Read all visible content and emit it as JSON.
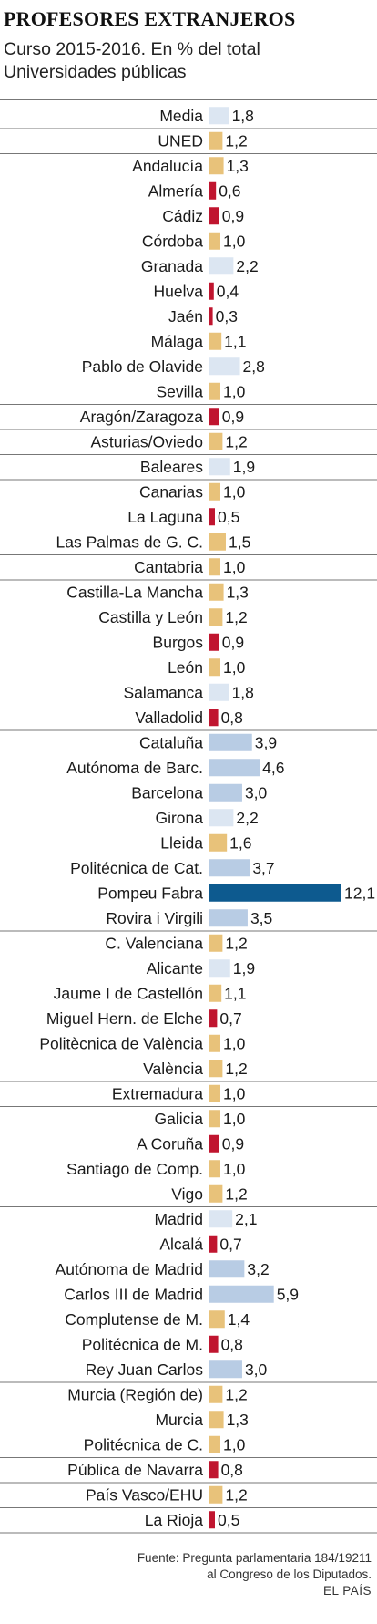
{
  "title": "PROFESORES EXTRANJEROS",
  "subtitle_line1": "Curso 2015-2016. En % del total",
  "subtitle_line2": "Universidades públicas",
  "source_line1": "Fuente: Pregunta parlamentaria 184/19211",
  "source_line2": "al Congreso de los Diputados.",
  "brand": "EL PAÍS",
  "colors": {
    "above_average": "#b8cce4",
    "mid": "#dce6f2",
    "below_average": "#e8c27a",
    "low": "#c0152f",
    "highlight": "#0d5a8f",
    "separator": "#777777"
  },
  "chart_data": {
    "type": "bar",
    "orientation": "horizontal",
    "title": "PROFESORES EXTRANJEROS",
    "subtitle": "Curso 2015-2016. En % del total Universidades públicas",
    "unit": "%",
    "value_labels": [
      "1,8",
      "1,2",
      "1,3",
      "0,6",
      "0,9",
      "1,0",
      "2,2",
      "0,4",
      "0,3",
      "1,1",
      "2,8",
      "1,0",
      "0,9",
      "1,2",
      "1,9",
      "1,0",
      "0,5",
      "1,5",
      "1,0",
      "1,3",
      "1,2",
      "0,9",
      "1,0",
      "1,8",
      "0,8",
      "3,9",
      "4,6",
      "3,0",
      "2,2",
      "1,6",
      "3,7",
      "12,1",
      "3,5",
      "1,2",
      "1,9",
      "1,1",
      "0,7",
      "1,0",
      "1,2",
      "1,0",
      "1,0",
      "0,9",
      "1,0",
      "1,2",
      "2,1",
      "0,7",
      "3,2",
      "5,9",
      "1,4",
      "0,8",
      "3,0",
      "1,2",
      "1,3",
      "1,0",
      "0,8",
      "1,2",
      "0,5"
    ],
    "categories": [
      "Media",
      "UNED",
      "Andalucía",
      "Almería",
      "Cádiz",
      "Córdoba",
      "Granada",
      "Huelva",
      "Jaén",
      "Málaga",
      "Pablo de Olavide",
      "Sevilla",
      "Aragón/Zaragoza",
      "Asturias/Oviedo",
      "Baleares",
      "Canarias",
      "La Laguna",
      "Las Palmas de G. C.",
      "Cantabria",
      "Castilla-La Mancha",
      "Castilla y León",
      "Burgos",
      "León",
      "Salamanca",
      "Valladolid",
      "Cataluña",
      "Autónoma de Barc.",
      "Barcelona",
      "Girona",
      "Lleida",
      "Politécnica de Cat.",
      "Pompeu Fabra",
      "Rovira i Virgili",
      "C. Valenciana",
      "Alicante",
      "Jaume I de Castellón",
      "Miguel Hern. de Elche",
      "Politècnica de València",
      "València",
      "Extremadura",
      "Galicia",
      "A Coruña",
      "Santiago de Comp.",
      "Vigo",
      "Madrid",
      "Alcalá",
      "Autónoma de Madrid",
      "Carlos III de Madrid",
      "Complutense de M.",
      "Politécnica de M.",
      "Rey Juan Carlos",
      "Murcia (Región de)",
      "Murcia",
      "Politécnica de C.",
      "Pública de Navarra",
      "País Vasco/EHU",
      "La Rioja"
    ],
    "values": [
      1.8,
      1.2,
      1.3,
      0.6,
      0.9,
      1.0,
      2.2,
      0.4,
      0.3,
      1.1,
      2.8,
      1.0,
      0.9,
      1.2,
      1.9,
      1.0,
      0.5,
      1.5,
      1.0,
      1.3,
      1.2,
      0.9,
      1.0,
      1.8,
      0.8,
      3.9,
      4.6,
      3.0,
      2.2,
      1.6,
      3.7,
      12.1,
      3.5,
      1.2,
      1.9,
      1.1,
      0.7,
      1.0,
      1.2,
      1.0,
      1.0,
      0.9,
      1.0,
      1.2,
      2.1,
      0.7,
      3.2,
      5.9,
      1.4,
      0.8,
      3.0,
      1.2,
      1.3,
      1.0,
      0.8,
      1.2,
      0.5
    ],
    "color_keys": [
      "mid",
      "below_average",
      "below_average",
      "low",
      "low",
      "below_average",
      "mid",
      "low",
      "low",
      "below_average",
      "mid",
      "below_average",
      "low",
      "below_average",
      "mid",
      "below_average",
      "low",
      "below_average",
      "below_average",
      "below_average",
      "below_average",
      "low",
      "below_average",
      "mid",
      "low",
      "above_average",
      "above_average",
      "above_average",
      "mid",
      "below_average",
      "above_average",
      "highlight",
      "above_average",
      "below_average",
      "mid",
      "below_average",
      "low",
      "below_average",
      "below_average",
      "below_average",
      "below_average",
      "low",
      "below_average",
      "below_average",
      "mid",
      "low",
      "above_average",
      "above_average",
      "below_average",
      "low",
      "above_average",
      "below_average",
      "below_average",
      "below_average",
      "low",
      "below_average",
      "low"
    ],
    "group_breaks_after": [
      0,
      1,
      11,
      12,
      13,
      14,
      17,
      18,
      19,
      24,
      32,
      38,
      39,
      43,
      50,
      53,
      54,
      55,
      56
    ],
    "xlim": [
      0,
      12.1
    ]
  }
}
